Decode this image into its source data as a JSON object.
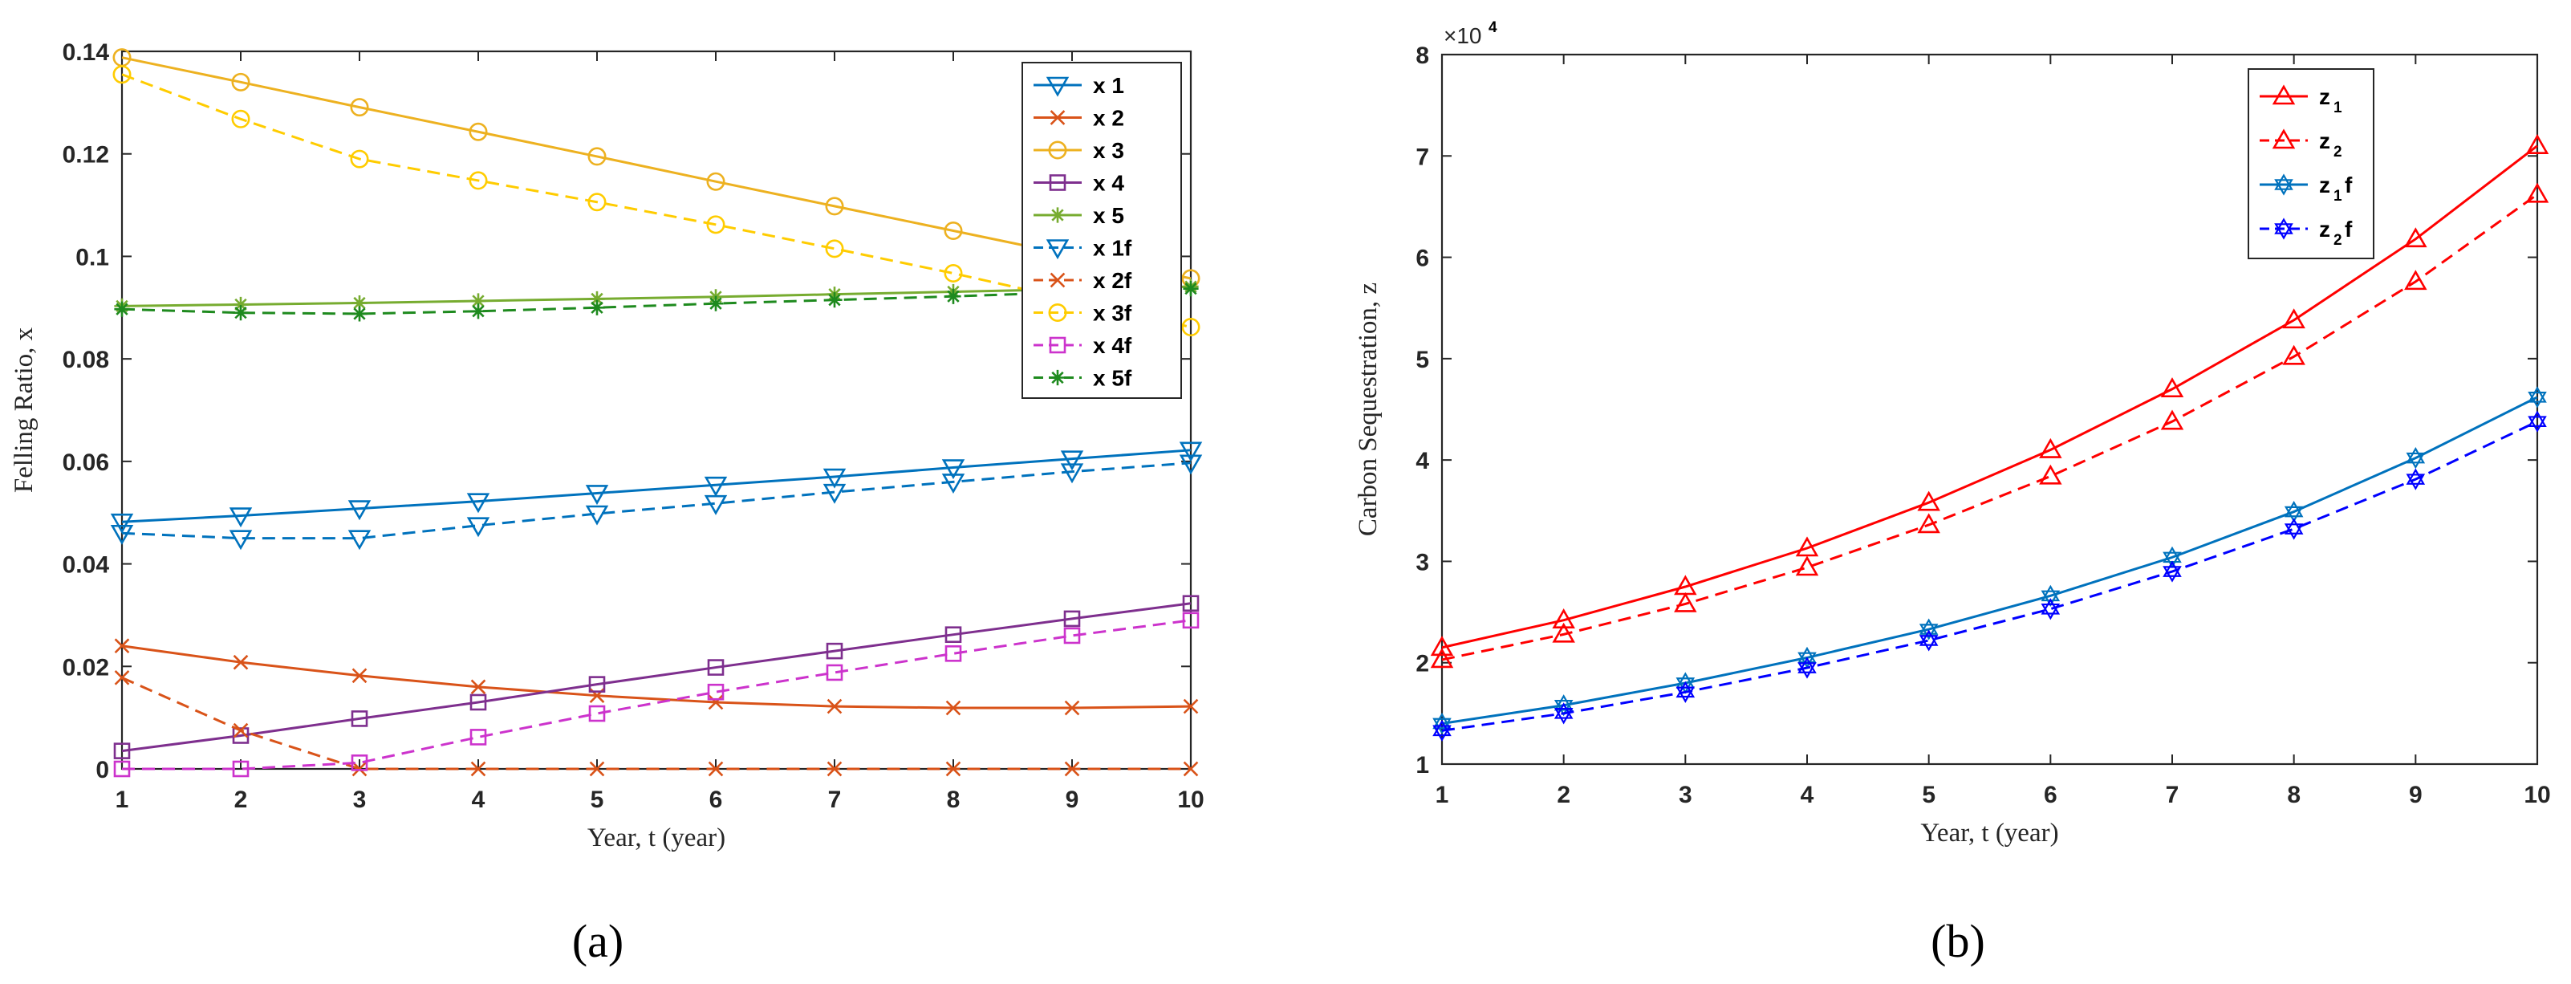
{
  "chart_data": [
    {
      "id": "a",
      "type": "line",
      "caption": "(a)",
      "xlabel": "Year, t (year)",
      "ylabel": "Felling Ratio, x",
      "xlim": [
        1,
        10
      ],
      "ylim": [
        0,
        0.14
      ],
      "xticks": [
        "1",
        "2",
        "3",
        "4",
        "5",
        "6",
        "7",
        "8",
        "9",
        "10"
      ],
      "yticks": [
        "0",
        "0.02",
        "0.04",
        "0.06",
        "0.08",
        "0.1",
        "0.12",
        "0.14"
      ],
      "x": [
        1,
        2,
        3,
        4,
        5,
        6,
        7,
        8,
        9,
        10
      ],
      "legend_position": "top-right",
      "series": [
        {
          "name": "x 1",
          "color": "#0072BD",
          "marker": "triangle-down",
          "dash": false,
          "values": [
            0.0482,
            0.0494,
            0.0508,
            0.0522,
            0.0538,
            0.0554,
            0.057,
            0.0588,
            0.0605,
            0.0622
          ]
        },
        {
          "name": "x 2",
          "color": "#D95319",
          "marker": "x",
          "dash": false,
          "values": [
            0.024,
            0.0208,
            0.0182,
            0.016,
            0.0143,
            0.013,
            0.0122,
            0.0119,
            0.0119,
            0.0122
          ]
        },
        {
          "name": "x 3",
          "color": "#EDB120",
          "marker": "circle",
          "dash": false,
          "values": [
            0.1388,
            0.134,
            0.1291,
            0.1243,
            0.1195,
            0.1146,
            0.1098,
            0.105,
            0.1002,
            0.0957
          ]
        },
        {
          "name": "x 4",
          "color": "#7E2F8E",
          "marker": "square",
          "dash": false,
          "values": [
            0.0035,
            0.0065,
            0.0098,
            0.013,
            0.0165,
            0.0198,
            0.023,
            0.0262,
            0.0293,
            0.0323
          ]
        },
        {
          "name": "x 5",
          "color": "#77AC30",
          "marker": "asterisk",
          "dash": false,
          "values": [
            0.0903,
            0.0906,
            0.0909,
            0.0913,
            0.0917,
            0.0921,
            0.0926,
            0.0931,
            0.0936,
            0.0941
          ]
        },
        {
          "name": "x 1f",
          "color": "#0072BD",
          "marker": "triangle-down",
          "dash": true,
          "values": [
            0.046,
            0.045,
            0.045,
            0.0475,
            0.0498,
            0.0518,
            0.054,
            0.056,
            0.058,
            0.0597
          ]
        },
        {
          "name": "x 2f",
          "color": "#D95319",
          "marker": "x",
          "dash": true,
          "values": [
            0.0178,
            0.0075,
            0,
            0,
            0,
            0,
            0,
            0,
            0,
            0
          ]
        },
        {
          "name": "x 3f",
          "color": "#FFCC00",
          "marker": "circle",
          "dash": true,
          "values": [
            0.1355,
            0.1268,
            0.119,
            0.1148,
            0.1106,
            0.1062,
            0.1015,
            0.0967,
            0.0915,
            0.0862
          ]
        },
        {
          "name": "x 4f",
          "color": "#CC33CC",
          "marker": "square",
          "dash": true,
          "values": [
            0,
            0,
            0.0012,
            0.0062,
            0.0108,
            0.015,
            0.0188,
            0.0225,
            0.026,
            0.029
          ]
        },
        {
          "name": "x 5f",
          "color": "#1E8A1E",
          "marker": "asterisk",
          "dash": true,
          "values": [
            0.0897,
            0.089,
            0.0888,
            0.0893,
            0.09,
            0.0908,
            0.0915,
            0.0922,
            0.093,
            0.0937
          ]
        }
      ]
    },
    {
      "id": "b",
      "type": "line",
      "caption": "(b)",
      "xlabel": "Year, t (year)",
      "ylabel": "Carbon Sequestration, z",
      "exponent": "×10",
      "exponent_power": "4",
      "xlim": [
        1,
        10
      ],
      "ylim": [
        1,
        8
      ],
      "xticks": [
        "1",
        "2",
        "3",
        "4",
        "5",
        "6",
        "7",
        "8",
        "9",
        "10"
      ],
      "yticks": [
        "1",
        "2",
        "3",
        "4",
        "5",
        "6",
        "7",
        "8"
      ],
      "x": [
        1,
        2,
        3,
        4,
        5,
        6,
        7,
        8,
        9,
        10
      ],
      "legend_position": "top-left",
      "series": [
        {
          "name": "z",
          "sub": "1",
          "suffix": "",
          "color": "#FF0000",
          "marker": "triangle-up",
          "dash": false,
          "values": [
            2.15,
            2.42,
            2.75,
            3.13,
            3.58,
            4.1,
            4.7,
            5.38,
            6.18,
            7.1
          ]
        },
        {
          "name": "z",
          "sub": "2",
          "suffix": "",
          "color": "#FF0000",
          "marker": "triangle-up",
          "dash": true,
          "values": [
            2.03,
            2.28,
            2.58,
            2.94,
            3.36,
            3.84,
            4.38,
            5.02,
            5.76,
            6.62
          ]
        },
        {
          "name": "z",
          "sub": "1",
          "suffix": "f",
          "color": "#0072BD",
          "marker": "hexagram",
          "dash": false,
          "values": [
            1.4,
            1.58,
            1.8,
            2.05,
            2.33,
            2.66,
            3.04,
            3.49,
            4.02,
            4.62
          ]
        },
        {
          "name": "z",
          "sub": "2",
          "suffix": "f",
          "color": "#0000FF",
          "marker": "hexagram",
          "dash": true,
          "values": [
            1.33,
            1.5,
            1.71,
            1.95,
            2.22,
            2.53,
            2.9,
            3.32,
            3.81,
            4.38
          ]
        }
      ]
    }
  ]
}
